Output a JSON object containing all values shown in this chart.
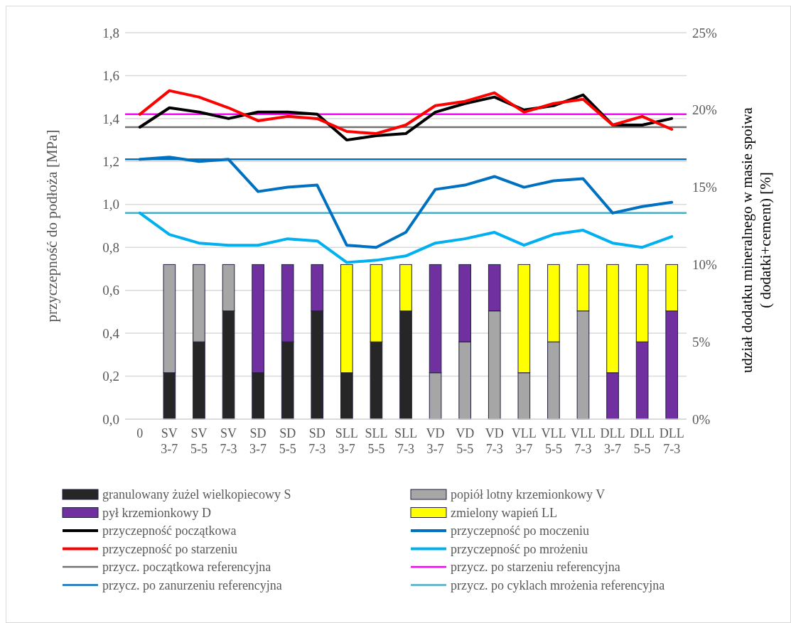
{
  "chart_data": {
    "type": "bar",
    "stacked": true,
    "ylabel": "przyczepność do podłoża [MPa]",
    "y2label": "udział dodatku mineralnego w masie spoiwa\n( dodatki+cement) [%]",
    "categories": [
      "0",
      "SV 3-7",
      "SV 5-5",
      "SV 7-3",
      "SD 3-7",
      "SD 5-5",
      "SD 7-3",
      "SLL 3-7",
      "SLL 5-5",
      "SLL 7-3",
      "VD 3-7",
      "VD 5-5",
      "VD 7-3",
      "VLL 3-7",
      "VLL 5-5",
      "VLL 7-3",
      "DLL 3-7",
      "DLL 5-5",
      "DLL 7-3"
    ],
    "ylim": [
      0,
      1.8
    ],
    "yticks": [
      {
        "value": 0,
        "label": "0,0"
      },
      {
        "value": 0.2,
        "label": "0,2"
      },
      {
        "value": 0.4,
        "label": "0,4"
      },
      {
        "value": 0.6,
        "label": "0,6"
      },
      {
        "value": 0.8,
        "label": "0,8"
      },
      {
        "value": 1,
        "label": "1,0"
      },
      {
        "value": 1.2,
        "label": "1,2"
      },
      {
        "value": 1.4,
        "label": "1,4"
      },
      {
        "value": 1.6,
        "label": "1,6"
      },
      {
        "value": 1.8,
        "label": "1,8"
      }
    ],
    "y2lim": [
      0,
      25
    ],
    "y2ticks": [
      {
        "value": 0,
        "label": "0%"
      },
      {
        "value": 5,
        "label": "5%"
      },
      {
        "value": 10,
        "label": "10%"
      },
      {
        "value": 15,
        "label": "15%"
      },
      {
        "value": 20,
        "label": "20%"
      },
      {
        "value": 25,
        "label": "25%"
      }
    ],
    "grid": "y",
    "legend": "bottom",
    "series": [
      {
        "name": "granulowany żużel wielkopiecowy S",
        "axis": "y2",
        "color": "#262626",
        "values": [
          null,
          3,
          5,
          7,
          3,
          5,
          7,
          3,
          5,
          7,
          null,
          null,
          null,
          null,
          null,
          null,
          null,
          null,
          null
        ]
      },
      {
        "name": "popiół lotny krzemionkowy V",
        "axis": "y2",
        "color": "#a6a6a6",
        "values": [
          null,
          7,
          5,
          3,
          null,
          null,
          null,
          null,
          null,
          null,
          3,
          5,
          7,
          3,
          5,
          7,
          null,
          null,
          null
        ]
      },
      {
        "name": "pył krzemionkowy D",
        "axis": "y2",
        "color": "#7030a0",
        "values": [
          null,
          null,
          null,
          null,
          7,
          5,
          3,
          null,
          null,
          null,
          7,
          5,
          3,
          null,
          null,
          null,
          3,
          5,
          7
        ]
      },
      {
        "name": "zmielony wapień LL",
        "axis": "y2",
        "color": "#ffff00",
        "values": [
          null,
          null,
          null,
          null,
          null,
          null,
          null,
          7,
          5,
          3,
          null,
          null,
          null,
          7,
          5,
          3,
          7,
          5,
          3
        ]
      },
      {
        "name": "przyczepność początkowa",
        "type": "line",
        "color": "#000000",
        "values": [
          1.36,
          1.45,
          1.43,
          1.4,
          1.43,
          1.43,
          1.42,
          1.3,
          1.32,
          1.33,
          1.43,
          1.47,
          1.5,
          1.44,
          1.46,
          1.51,
          1.37,
          1.37,
          1.4
        ]
      },
      {
        "name": "przyczepność po moczeniu",
        "type": "line",
        "color": "#0070c0",
        "values": [
          1.21,
          1.22,
          1.2,
          1.21,
          1.06,
          1.08,
          1.09,
          0.81,
          0.8,
          0.87,
          1.07,
          1.09,
          1.13,
          1.08,
          1.11,
          1.12,
          0.96,
          0.99,
          1.01
        ]
      },
      {
        "name": "przyczepność po starzeniu",
        "type": "line",
        "color": "#ff0000",
        "values": [
          1.42,
          1.53,
          1.5,
          1.45,
          1.39,
          1.41,
          1.4,
          1.34,
          1.33,
          1.37,
          1.46,
          1.48,
          1.52,
          1.43,
          1.47,
          1.49,
          1.37,
          1.41,
          1.35
        ]
      },
      {
        "name": "przyczepność po mrożeniu",
        "type": "line",
        "color": "#00b0f0",
        "values": [
          0.96,
          0.86,
          0.82,
          0.81,
          0.81,
          0.84,
          0.83,
          0.73,
          0.74,
          0.76,
          0.82,
          0.84,
          0.87,
          0.81,
          0.86,
          0.88,
          0.82,
          0.8,
          0.85
        ]
      }
    ],
    "ref_lines": [
      {
        "axis": "y",
        "value": 1.36,
        "label": "przycz. początkowa referencyjna",
        "color": "#767171"
      },
      {
        "axis": "y",
        "value": 1.42,
        "label": "przycz. po starzeniu referencyjna",
        "color": "#ff00ff"
      },
      {
        "axis": "y",
        "value": 1.21,
        "label": "przycz. po zanurzeniu referencyjna",
        "color": "#0070c0"
      },
      {
        "axis": "y",
        "value": 0.96,
        "label": "przycz. po cyklach mrożenia referencyjna",
        "color": "#4bacc6"
      }
    ]
  }
}
